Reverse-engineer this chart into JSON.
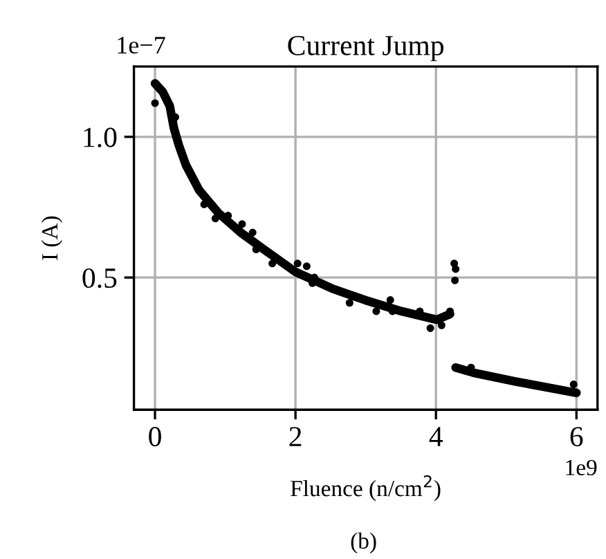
{
  "chart_data": {
    "type": "scatter",
    "title": "Current Jump",
    "xlabel": "Fluence (n/cm$^{2}$)",
    "ylabel": "I (A)",
    "annotations": [
      "1e−7",
      "1e9",
      "(b)"
    ],
    "xlim": [
      -0.3,
      6.3
    ],
    "ylim": [
      0.03,
      1.25
    ],
    "xticks": [
      0,
      2,
      4,
      6
    ],
    "yticks": [
      0.5,
      {
        "value": 1,
        "label": "1.0"
      }
    ],
    "grid": true,
    "series": [
      {
        "color": "#000000",
        "marker": "circle",
        "x": [
          0,
          0.29,
          0.7,
          0.86,
          1.04,
          1.24,
          1.39,
          1.44,
          1.67,
          2.03,
          2.16,
          2.24,
          2.27,
          2.77,
          3.15,
          3.35,
          3.38,
          3.77,
          3.92,
          4.08,
          4.2,
          4.26,
          4.27,
          4.28,
          4.5,
          5.96
        ],
        "values": [
          1.12,
          1.07,
          0.76,
          0.71,
          0.72,
          0.69,
          0.66,
          0.6,
          0.55,
          0.55,
          0.54,
          0.48,
          0.5,
          0.41,
          0.38,
          0.42,
          0.38,
          0.38,
          0.32,
          0.33,
          0.38,
          0.55,
          0.49,
          0.53,
          0.18,
          0.12
        ]
      },
      {
        "type": "line",
        "color": "#000000",
        "x": [
          0,
          0.11,
          0.21,
          0.27,
          0.34,
          0.44,
          0.63,
          0.9,
          1.22,
          1.55,
          2.0,
          2.53,
          2.99,
          3.51,
          4.01,
          4.2
        ],
        "values": [
          1.19,
          1.16,
          1.11,
          1.03,
          0.97,
          0.9,
          0.81,
          0.73,
          0.66,
          0.6,
          0.52,
          0.46,
          0.42,
          0.38,
          0.35,
          0.37
        ]
      },
      {
        "type": "line",
        "color": "#000000",
        "x": [
          4.28,
          4.56,
          5.14,
          6.0
        ],
        "values": [
          0.18,
          0.16,
          0.13,
          0.09
        ]
      }
    ]
  }
}
